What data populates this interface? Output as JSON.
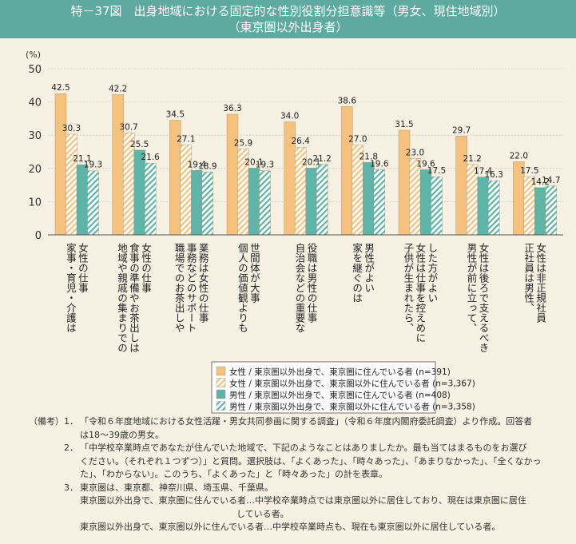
{
  "header": {
    "title_line1": "特－37図　出身地域における固定的な性別役割分担意識等（男女、現住地域別）",
    "title_line2": "（東京圏以外出身者）"
  },
  "chart_data": {
    "type": "bar",
    "ylabel": "(%)",
    "ylim": [
      0,
      50
    ],
    "yticks": [
      0,
      10,
      20,
      30,
      40,
      50
    ],
    "categories": [
      [
        "女性の仕事",
        "家事・育児・介護は"
      ],
      [
        "女性の仕事",
        "食事の準備やお茶出しは",
        "地域や親戚の集まりでの"
      ],
      [
        "業務は女性の仕事",
        "事務などのサポート",
        "職場でのお茶出しや"
      ],
      [
        "世間体が大事",
        "個人の価値観よりも"
      ],
      [
        "役職は男性の仕事",
        "自治会などの重要な"
      ],
      [
        "男性がよい",
        "家を継ぐのは"
      ],
      [
        "した方がよい",
        "女性は仕事を控えめに",
        "子供が生まれたら、"
      ],
      [
        "女性は後ろで支えるべき",
        "男性が前に立って、"
      ],
      [
        "女性は非正規社員",
        "正社員は男性、"
      ]
    ],
    "series": [
      {
        "name": "女性 / 東京圏以外出身で、東京圏に住んでいる者 (n=391)",
        "color": "#f5c27e",
        "pattern": "solid",
        "values": [
          42.5,
          42.2,
          34.5,
          36.3,
          34.0,
          38.6,
          31.5,
          29.7,
          22.0
        ]
      },
      {
        "name": "女性 / 東京圏以外出身で、東京圏以外に住んでいる者 (n=3,367)",
        "color": "#f5c27e",
        "pattern": "hatch",
        "values": [
          30.3,
          30.7,
          27.1,
          25.9,
          26.4,
          27.0,
          23.0,
          21.2,
          17.5
        ]
      },
      {
        "name": "男性 / 東京圏以外出身で、東京圏に住んでいる者 (n=408)",
        "color": "#5eb4a6",
        "pattern": "solid",
        "values": [
          21.1,
          25.5,
          19.4,
          20.1,
          20.1,
          21.8,
          19.6,
          17.4,
          14.2
        ]
      },
      {
        "name": "男性 / 東京圏以外出身で、東京圏以外に住んでいる者 (n=3,358)",
        "color": "#5eb4a6",
        "pattern": "hatch",
        "values": [
          19.3,
          21.6,
          18.9,
          19.3,
          21.2,
          19.6,
          17.5,
          16.3,
          14.7
        ]
      }
    ],
    "grid": true,
    "legend_position": "bottom-right"
  },
  "notes": {
    "lead": "（備考）",
    "items": [
      {
        "num": "1．",
        "lines": [
          "「令和６年度地域における女性活躍・男女共同参画に関する調査」（令和６年度内閣府委託調査）より作成。回答者",
          "は18～39歳の男女。"
        ]
      },
      {
        "num": "2．",
        "lines": [
          "「中学校卒業時点であなたが住んでいた地域で、下記のようなことはありましたか。最も当てはまるものをお選び",
          "ください。（それぞれ１つずつ）」と質問。選択肢は、「よくあった」、「時々あった」、「あまりなかった」、「全くなかっ",
          "た」、「わからない」。このうち、「よくあった」と「時々あった」の計を表章。"
        ]
      },
      {
        "num": "3．",
        "lines": [
          "東京圏は、東京都、神奈川県、埼玉県、千葉県。"
        ]
      }
    ],
    "def1_a": "東京圏以外出身で、東京圏に住んでいる者…中学校卒業時点では東京圏以外に居住しており、現在は東京圏に居住",
    "def1_b": "している者。",
    "def2": "東京圏以外出身で、東京圏以外に住んでいる者…中学校卒業時点も、現在も東京圏以外に居住している者。"
  }
}
